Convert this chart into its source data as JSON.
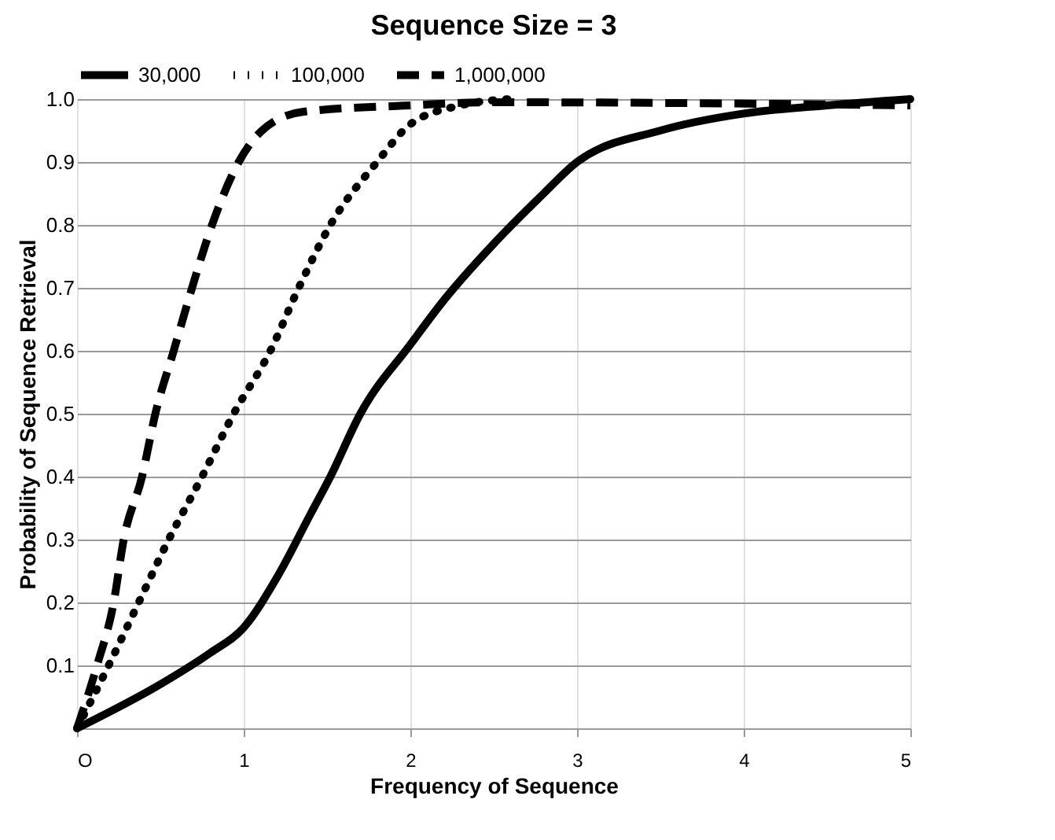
{
  "chart_data": {
    "type": "line",
    "title": "Sequence Size = 3",
    "xlabel": "Frequency of Sequence",
    "ylabel": "Probability of Sequence Retrieval",
    "xlim": [
      0,
      5
    ],
    "xticks": [
      {
        "value": 0,
        "label": "O"
      },
      1,
      2,
      3,
      4,
      5
    ],
    "ylim": [
      0,
      1.0
    ],
    "yticks": [
      {
        "value": 0,
        "label": null
      },
      0.1,
      0.2,
      0.3,
      0.4,
      0.5,
      0.6,
      0.7,
      0.8,
      0.9,
      {
        "value": 1.0,
        "label": "1.0"
      }
    ],
    "grid": true,
    "legend": "top",
    "series": [
      {
        "name": "30,000",
        "color": "#000000",
        "line_style": "solid",
        "x": [
          0,
          0.5,
          0.8,
          1,
          1.2,
          1.4,
          1.52,
          1.7,
          2,
          2.2,
          2.5,
          2.8,
          3,
          3.5,
          4,
          4.5,
          5
        ],
        "values": [
          0,
          0.07,
          0.12,
          0.16,
          0.24,
          0.34,
          0.4,
          0.5,
          0.61,
          0.68,
          0.77,
          0.85,
          0.9,
          0.95,
          0.977,
          0.99,
          1.0
        ]
      },
      {
        "name": "100,000",
        "color": "#000000",
        "line_style": "dotted",
        "x": [
          0,
          0.19,
          0.37,
          0.55,
          0.75,
          0.94,
          1.16,
          1.33,
          1.52,
          1.8,
          2.0,
          2.3,
          2.6
        ],
        "values": [
          0,
          0.1,
          0.2,
          0.3,
          0.4,
          0.5,
          0.6,
          0.7,
          0.8,
          0.9,
          0.96,
          0.99,
          1.0
        ]
      },
      {
        "name": "1,000,000",
        "color": "#000000",
        "line_style": "dashed",
        "x": [
          0,
          0.12,
          0.22,
          0.28,
          0.39,
          0.47,
          0.58,
          0.69,
          0.81,
          0.97,
          1.11,
          1.36,
          2.0,
          2.5,
          5
        ],
        "values": [
          0,
          0.1,
          0.2,
          0.3,
          0.4,
          0.5,
          0.6,
          0.7,
          0.8,
          0.9,
          0.95,
          0.98,
          0.99,
          0.995,
          0.99
        ]
      }
    ]
  }
}
